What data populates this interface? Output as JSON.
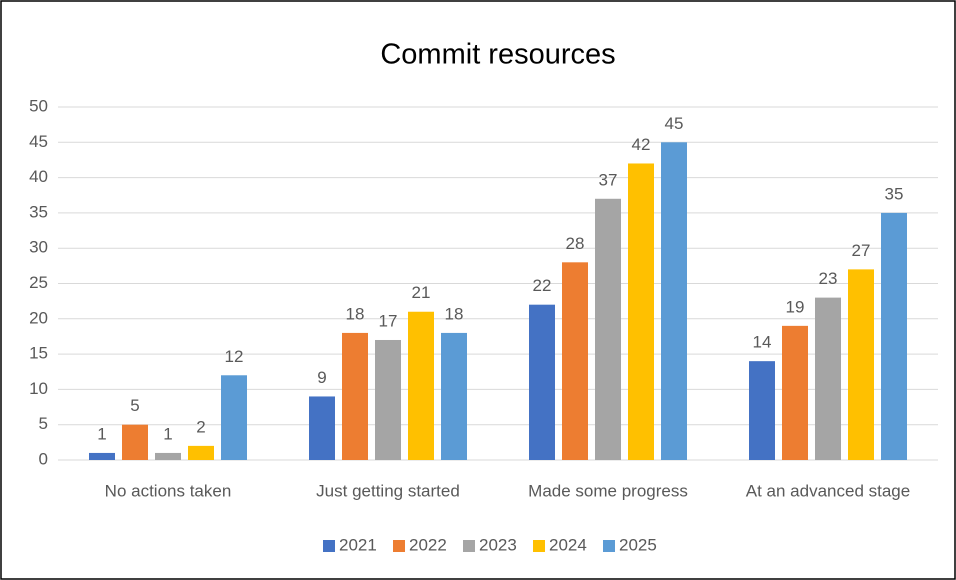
{
  "chart_data": {
    "type": "bar",
    "title": "Commit resources",
    "categories": [
      "No actions taken",
      "Just getting started",
      "Made some progress",
      "At an advanced stage"
    ],
    "series": [
      {
        "name": "2021",
        "color": "#4472c4",
        "values": [
          1,
          9,
          22,
          14
        ]
      },
      {
        "name": "2022",
        "color": "#ed7d31",
        "values": [
          5,
          18,
          28,
          19
        ]
      },
      {
        "name": "2023",
        "color": "#a5a5a5",
        "values": [
          1,
          17,
          37,
          23
        ]
      },
      {
        "name": "2024",
        "color": "#ffc000",
        "values": [
          2,
          21,
          42,
          27
        ]
      },
      {
        "name": "2025",
        "color": "#5b9bd5",
        "values": [
          12,
          18,
          45,
          35
        ]
      }
    ],
    "ylim": [
      0,
      50
    ],
    "yticks": [
      0,
      5,
      10,
      15,
      20,
      25,
      30,
      35,
      40,
      45,
      50
    ],
    "grid": true,
    "legend": "bottom"
  }
}
